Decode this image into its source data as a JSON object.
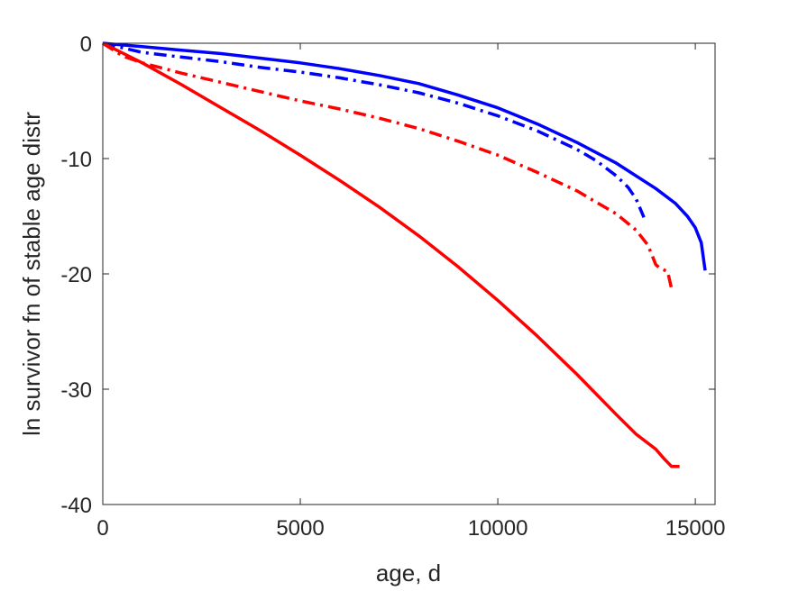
{
  "chart_data": {
    "type": "line",
    "title": "",
    "xlabel": "age, d",
    "ylabel": "ln survivor fn of stable age distr",
    "xlim": [
      0,
      15500
    ],
    "ylim": [
      -40,
      0
    ],
    "xticks": [
      0,
      5000,
      10000,
      15000
    ],
    "yticks": [
      0,
      -10,
      -20,
      -30,
      -40
    ],
    "xtick_labels": [
      "0",
      "5000",
      "10000",
      "15000"
    ],
    "ytick_labels": [
      "0",
      "-10",
      "-20",
      "-30",
      "-40"
    ],
    "grid": false,
    "legend": "none",
    "series": [
      {
        "color": "#0000ff",
        "style": "solid",
        "x": [
          0,
          1000,
          2000,
          3000,
          4000,
          5000,
          6000,
          7000,
          8000,
          9000,
          10000,
          11000,
          12000,
          13000,
          14000,
          14500,
          14800,
          15000,
          15150,
          15250
        ],
        "y": [
          0,
          -0.3,
          -0.6,
          -0.9,
          -1.3,
          -1.7,
          -2.2,
          -2.8,
          -3.5,
          -4.5,
          -5.6,
          -7.0,
          -8.6,
          -10.4,
          -12.6,
          -13.9,
          -15.0,
          -16.0,
          -17.3,
          -19.7
        ]
      },
      {
        "color": "#0000ff",
        "style": "dashdot",
        "x": [
          0,
          1000,
          2000,
          3000,
          4000,
          5000,
          6000,
          7000,
          8000,
          9000,
          10000,
          11000,
          12000,
          12500,
          13000,
          13300,
          13500,
          13700
        ],
        "y": [
          0,
          -0.8,
          -1.2,
          -1.6,
          -2.1,
          -2.5,
          -3.0,
          -3.6,
          -4.3,
          -5.2,
          -6.3,
          -7.6,
          -9.2,
          -10.2,
          -11.5,
          -12.5,
          -13.5,
          -15.1
        ]
      },
      {
        "color": "#ff0000",
        "style": "dashdot",
        "x": [
          0,
          500,
          1000,
          2000,
          3000,
          4000,
          5000,
          6000,
          7000,
          8000,
          9000,
          10000,
          11000,
          12000,
          13000,
          13500,
          13800,
          14000,
          14100,
          14300,
          14400
        ],
        "y": [
          0,
          -1.1,
          -1.7,
          -2.6,
          -3.4,
          -4.2,
          -5.0,
          -5.7,
          -6.5,
          -7.4,
          -8.5,
          -9.7,
          -11.2,
          -12.8,
          -14.8,
          -16.2,
          -17.5,
          -19.2,
          -19.5,
          -19.8,
          -21.3
        ]
      },
      {
        "color": "#ff0000",
        "style": "solid",
        "x": [
          0,
          1000,
          2000,
          3000,
          4000,
          5000,
          6000,
          7000,
          8000,
          9000,
          10000,
          11000,
          12000,
          13000,
          13500,
          14000,
          14200,
          14400,
          14600
        ],
        "y": [
          0,
          -1.7,
          -3.6,
          -5.6,
          -7.6,
          -9.7,
          -11.9,
          -14.2,
          -16.7,
          -19.4,
          -22.3,
          -25.4,
          -28.7,
          -32.2,
          -33.9,
          -35.2,
          -36.0,
          -36.7,
          -36.7
        ]
      }
    ]
  }
}
